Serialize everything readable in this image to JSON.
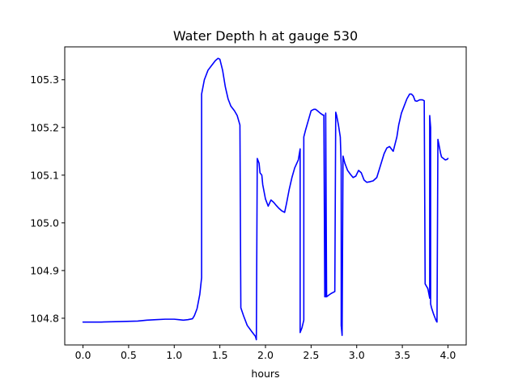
{
  "chart_data": {
    "type": "line",
    "title": "Water Depth h at gauge 530",
    "xlabel": "hours",
    "ylabel": "",
    "xlim": [
      -0.2,
      4.2
    ],
    "ylim": [
      104.744,
      105.369
    ],
    "xticks": [
      0.0,
      0.5,
      1.0,
      1.5,
      2.0,
      2.5,
      3.0,
      3.5,
      4.0
    ],
    "xtick_labels": [
      "0.0",
      "0.5",
      "1.0",
      "1.5",
      "2.0",
      "2.5",
      "3.0",
      "3.5",
      "4.0"
    ],
    "yticks": [
      104.8,
      104.9,
      105.0,
      105.1,
      105.2,
      105.3
    ],
    "ytick_labels": [
      "104.8",
      "104.9",
      "105.0",
      "105.1",
      "105.2",
      "105.3"
    ],
    "grid": false,
    "legend": "none",
    "series": [
      {
        "color": "#0000ff",
        "x": [
          0.0,
          0.2,
          0.4,
          0.6,
          0.7,
          0.8,
          0.9,
          1.0,
          1.05,
          1.1,
          1.15,
          1.2,
          1.22,
          1.25,
          1.28,
          1.3,
          1.3,
          1.33,
          1.37,
          1.41,
          1.45,
          1.48,
          1.5,
          1.53,
          1.56,
          1.59,
          1.62,
          1.66,
          1.69,
          1.72,
          1.73,
          1.76,
          1.8,
          1.85,
          1.89,
          1.9,
          1.91,
          1.93,
          1.94,
          1.96,
          1.97,
          2.0,
          2.03,
          2.06,
          2.09,
          2.12,
          2.15,
          2.18,
          2.21,
          2.23,
          2.26,
          2.29,
          2.32,
          2.36,
          2.38,
          2.38,
          2.4,
          2.42,
          2.42,
          2.44,
          2.47,
          2.5,
          2.53,
          2.55,
          2.57,
          2.6,
          2.63,
          2.64,
          2.65,
          2.66,
          2.66,
          2.67,
          2.67,
          2.69,
          2.72,
          2.74,
          2.76,
          2.77,
          2.78,
          2.8,
          2.82,
          2.83,
          2.83,
          2.84,
          2.85,
          2.87,
          2.9,
          2.93,
          2.96,
          2.99,
          3.02,
          3.05,
          3.08,
          3.11,
          3.14,
          3.18,
          3.22,
          3.26,
          3.3,
          3.33,
          3.36,
          3.38,
          3.4,
          3.42,
          3.44,
          3.46,
          3.49,
          3.52,
          3.55,
          3.58,
          3.6,
          3.62,
          3.64,
          3.66,
          3.69,
          3.72,
          3.74,
          3.75,
          3.78,
          3.8,
          3.8,
          3.81,
          3.81,
          3.82,
          3.84,
          3.87,
          3.88,
          3.89,
          3.9,
          3.92,
          3.93,
          3.95,
          3.97,
          3.99,
          4.0
        ],
        "y": [
          104.792,
          104.792,
          104.793,
          104.794,
          104.796,
          104.797,
          104.798,
          104.798,
          104.797,
          104.796,
          104.797,
          104.799,
          104.805,
          104.82,
          104.85,
          104.885,
          105.27,
          105.3,
          105.32,
          105.33,
          105.34,
          105.345,
          105.343,
          105.32,
          105.285,
          105.26,
          105.245,
          105.235,
          105.225,
          105.205,
          104.822,
          104.805,
          104.785,
          104.772,
          104.762,
          104.755,
          105.135,
          105.125,
          105.105,
          105.1,
          105.08,
          105.05,
          105.035,
          105.048,
          105.043,
          105.036,
          105.03,
          105.025,
          105.022,
          105.04,
          105.07,
          105.095,
          105.115,
          105.132,
          105.155,
          104.77,
          104.78,
          104.796,
          105.18,
          105.195,
          105.215,
          105.235,
          105.238,
          105.238,
          105.235,
          105.23,
          105.226,
          105.226,
          104.845,
          104.845,
          105.23,
          104.845,
          104.845,
          104.848,
          104.852,
          104.854,
          104.856,
          105.232,
          105.225,
          105.205,
          105.18,
          105.12,
          104.785,
          104.764,
          105.14,
          105.125,
          105.11,
          105.102,
          105.095,
          105.098,
          105.11,
          105.105,
          105.09,
          105.085,
          105.086,
          105.088,
          105.095,
          105.12,
          105.145,
          105.157,
          105.16,
          105.155,
          105.15,
          105.165,
          105.18,
          105.205,
          105.23,
          105.245,
          105.26,
          105.27,
          105.27,
          105.266,
          105.256,
          105.255,
          105.258,
          105.258,
          105.256,
          104.872,
          104.862,
          104.842,
          105.225,
          105.2,
          104.83,
          104.822,
          104.81,
          104.795,
          104.792,
          105.175,
          105.165,
          105.145,
          105.138,
          105.135,
          105.132,
          105.133,
          105.135
        ]
      }
    ]
  }
}
